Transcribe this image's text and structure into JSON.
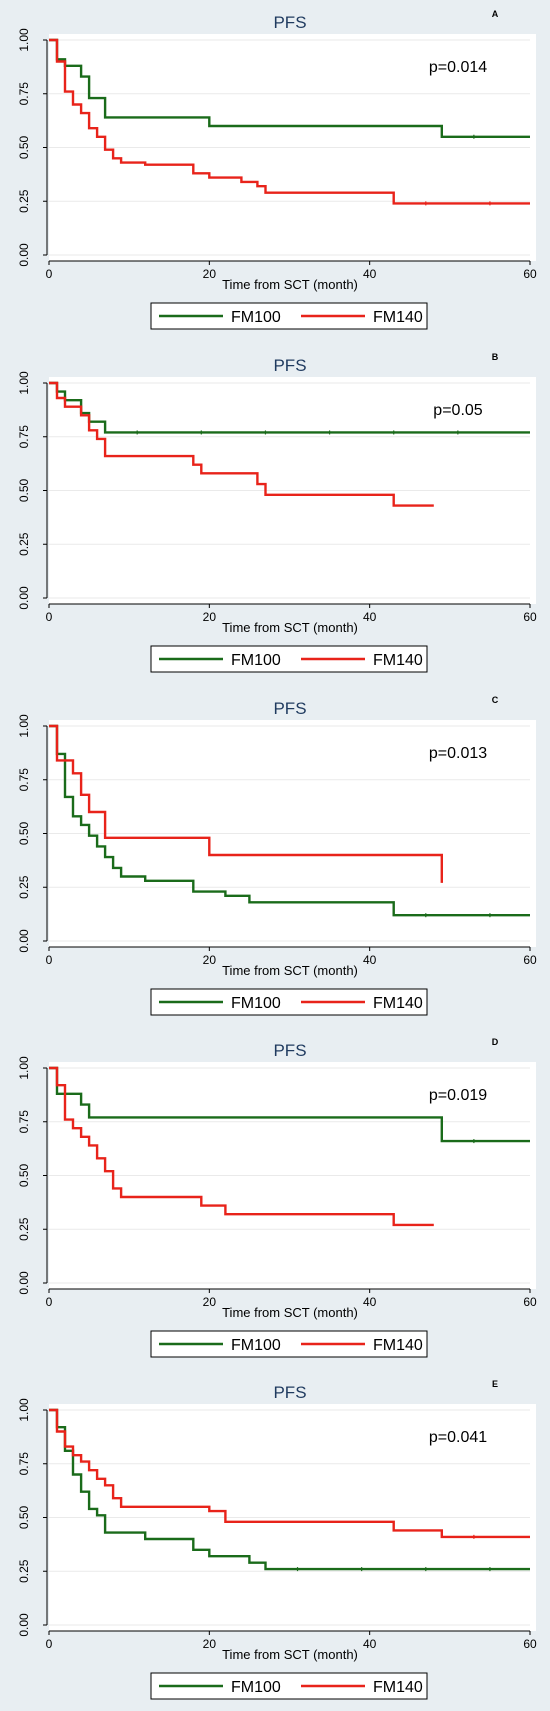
{
  "colors": {
    "FM100": "#1a6b1a",
    "FM140": "#e8231a"
  },
  "chart_data": [
    {
      "type": "line",
      "panel_label": "A",
      "title": "PFS",
      "xlabel": "Time from SCT (month)",
      "ylabel": "",
      "xlim": [
        0,
        60
      ],
      "ylim": [
        0,
        1
      ],
      "xticks": [
        "0",
        "20",
        "40",
        "60"
      ],
      "yticks": [
        "0.00",
        "0.25",
        "0.50",
        "0.75",
        "1.00"
      ],
      "annotation": "p=0.014",
      "legend": [
        "FM100",
        "FM140"
      ],
      "series": [
        {
          "name": "FM100",
          "x": [
            0,
            1,
            1,
            2,
            2,
            4,
            4,
            5,
            5,
            7,
            7,
            20,
            20,
            49,
            49,
            60
          ],
          "y": [
            1,
            1,
            0.91,
            0.91,
            0.88,
            0.88,
            0.83,
            0.83,
            0.73,
            0.73,
            0.64,
            0.64,
            0.6,
            0.6,
            0.55,
            0.55
          ]
        },
        {
          "name": "FM140",
          "x": [
            0,
            1,
            1,
            2,
            2,
            3,
            3,
            4,
            4,
            5,
            5,
            6,
            6,
            7,
            7,
            8,
            8,
            9,
            9,
            12,
            12,
            18,
            18,
            20,
            20,
            24,
            24,
            26,
            26,
            27,
            27,
            43,
            43,
            60
          ],
          "y": [
            1,
            1,
            0.9,
            0.9,
            0.76,
            0.76,
            0.7,
            0.7,
            0.66,
            0.66,
            0.59,
            0.59,
            0.55,
            0.55,
            0.49,
            0.49,
            0.45,
            0.45,
            0.43,
            0.43,
            0.42,
            0.42,
            0.38,
            0.38,
            0.36,
            0.36,
            0.34,
            0.34,
            0.32,
            0.32,
            0.29,
            0.29,
            0.24,
            0.24
          ]
        }
      ]
    },
    {
      "type": "line",
      "panel_label": "B",
      "title": "PFS",
      "xlabel": "Time from SCT (month)",
      "ylabel": "",
      "xlim": [
        0,
        60
      ],
      "ylim": [
        0,
        1
      ],
      "xticks": [
        "0",
        "20",
        "40",
        "60"
      ],
      "yticks": [
        "0.00",
        "0.25",
        "0.50",
        "0.75",
        "1.00"
      ],
      "annotation": "p=0.05",
      "legend": [
        "FM100",
        "FM140"
      ],
      "series": [
        {
          "name": "FM100",
          "x": [
            0,
            1,
            1,
            2,
            2,
            4,
            4,
            5,
            5,
            7,
            7,
            60
          ],
          "y": [
            1,
            1,
            0.96,
            0.96,
            0.92,
            0.92,
            0.86,
            0.86,
            0.82,
            0.82,
            0.77,
            0.77
          ]
        },
        {
          "name": "FM140",
          "x": [
            0,
            1,
            1,
            2,
            2,
            4,
            4,
            5,
            5,
            6,
            6,
            7,
            7,
            18,
            18,
            19,
            19,
            26,
            26,
            27,
            27,
            43,
            43,
            48
          ],
          "y": [
            1,
            1,
            0.93,
            0.93,
            0.89,
            0.89,
            0.85,
            0.85,
            0.78,
            0.78,
            0.74,
            0.74,
            0.66,
            0.66,
            0.62,
            0.62,
            0.58,
            0.58,
            0.53,
            0.53,
            0.48,
            0.48,
            0.43,
            0.43
          ]
        }
      ]
    },
    {
      "type": "line",
      "panel_label": "C",
      "title": "PFS",
      "xlabel": "Time from SCT (month)",
      "ylabel": "",
      "xlim": [
        0,
        60
      ],
      "ylim": [
        0,
        1
      ],
      "xticks": [
        "0",
        "20",
        "40",
        "60"
      ],
      "yticks": [
        "0.00",
        "0.25",
        "0.50",
        "0.75",
        "1.00"
      ],
      "annotation": "p=0.013",
      "legend": [
        "FM100",
        "FM140"
      ],
      "series": [
        {
          "name": "FM100",
          "x": [
            0,
            1,
            1,
            2,
            2,
            3,
            3,
            4,
            4,
            5,
            5,
            6,
            6,
            7,
            7,
            8,
            8,
            9,
            9,
            12,
            12,
            18,
            18,
            22,
            22,
            25,
            25,
            43,
            43,
            60
          ],
          "y": [
            1,
            1,
            0.87,
            0.87,
            0.67,
            0.67,
            0.58,
            0.58,
            0.54,
            0.54,
            0.49,
            0.49,
            0.44,
            0.44,
            0.39,
            0.39,
            0.34,
            0.34,
            0.3,
            0.3,
            0.28,
            0.28,
            0.23,
            0.23,
            0.21,
            0.21,
            0.18,
            0.18,
            0.12,
            0.12
          ]
        },
        {
          "name": "FM140",
          "x": [
            0,
            1,
            1,
            3,
            3,
            4,
            4,
            5,
            5,
            7,
            7,
            20,
            20,
            49,
            49
          ],
          "y": [
            1,
            1,
            0.84,
            0.84,
            0.78,
            0.78,
            0.68,
            0.68,
            0.6,
            0.6,
            0.48,
            0.48,
            0.4,
            0.4,
            0.27
          ]
        }
      ]
    },
    {
      "type": "line",
      "panel_label": "D",
      "title": "PFS",
      "xlabel": "Time from SCT (month)",
      "ylabel": "",
      "xlim": [
        0,
        60
      ],
      "ylim": [
        0,
        1
      ],
      "xticks": [
        "0",
        "20",
        "40",
        "60"
      ],
      "yticks": [
        "0.00",
        "0.25",
        "0.50",
        "0.75",
        "1.00"
      ],
      "annotation": "p=0.019",
      "legend": [
        "FM100",
        "FM140"
      ],
      "series": [
        {
          "name": "FM100",
          "x": [
            0,
            1,
            1,
            4,
            4,
            5,
            5,
            49,
            49,
            60
          ],
          "y": [
            1,
            1,
            0.88,
            0.88,
            0.83,
            0.83,
            0.77,
            0.77,
            0.66,
            0.66
          ]
        },
        {
          "name": "FM140",
          "x": [
            0,
            1,
            1,
            2,
            2,
            3,
            3,
            4,
            4,
            5,
            5,
            6,
            6,
            7,
            7,
            8,
            8,
            9,
            9,
            19,
            19,
            22,
            22,
            43,
            43,
            48
          ],
          "y": [
            1,
            1,
            0.92,
            0.92,
            0.76,
            0.76,
            0.72,
            0.72,
            0.68,
            0.68,
            0.64,
            0.64,
            0.58,
            0.58,
            0.52,
            0.52,
            0.44,
            0.44,
            0.4,
            0.4,
            0.36,
            0.36,
            0.32,
            0.32,
            0.27,
            0.27
          ]
        }
      ]
    },
    {
      "type": "line",
      "panel_label": "E",
      "title": "PFS",
      "xlabel": "Time from SCT (month)",
      "ylabel": "",
      "xlim": [
        0,
        60
      ],
      "ylim": [
        0,
        1
      ],
      "xticks": [
        "0",
        "20",
        "40",
        "60"
      ],
      "yticks": [
        "0.00",
        "0.25",
        "0.50",
        "0.75",
        "1.00"
      ],
      "annotation": "p=0.041",
      "legend": [
        "FM100",
        "FM140"
      ],
      "series": [
        {
          "name": "FM100",
          "x": [
            0,
            1,
            1,
            2,
            2,
            3,
            3,
            4,
            4,
            5,
            5,
            6,
            6,
            7,
            7,
            12,
            12,
            18,
            18,
            20,
            20,
            25,
            25,
            27,
            27,
            60
          ],
          "y": [
            1,
            1,
            0.92,
            0.92,
            0.81,
            0.81,
            0.7,
            0.7,
            0.62,
            0.62,
            0.54,
            0.54,
            0.51,
            0.51,
            0.43,
            0.43,
            0.4,
            0.4,
            0.35,
            0.35,
            0.32,
            0.32,
            0.29,
            0.29,
            0.26,
            0.26
          ]
        },
        {
          "name": "FM140",
          "x": [
            0,
            1,
            1,
            2,
            2,
            3,
            3,
            4,
            4,
            5,
            5,
            6,
            6,
            7,
            7,
            8,
            8,
            9,
            9,
            20,
            20,
            22,
            22,
            43,
            43,
            49,
            49,
            60
          ],
          "y": [
            1,
            1,
            0.9,
            0.9,
            0.83,
            0.83,
            0.79,
            0.79,
            0.76,
            0.76,
            0.72,
            0.72,
            0.68,
            0.68,
            0.65,
            0.65,
            0.59,
            0.59,
            0.55,
            0.55,
            0.53,
            0.53,
            0.48,
            0.48,
            0.44,
            0.44,
            0.41,
            0.41
          ]
        }
      ]
    }
  ]
}
